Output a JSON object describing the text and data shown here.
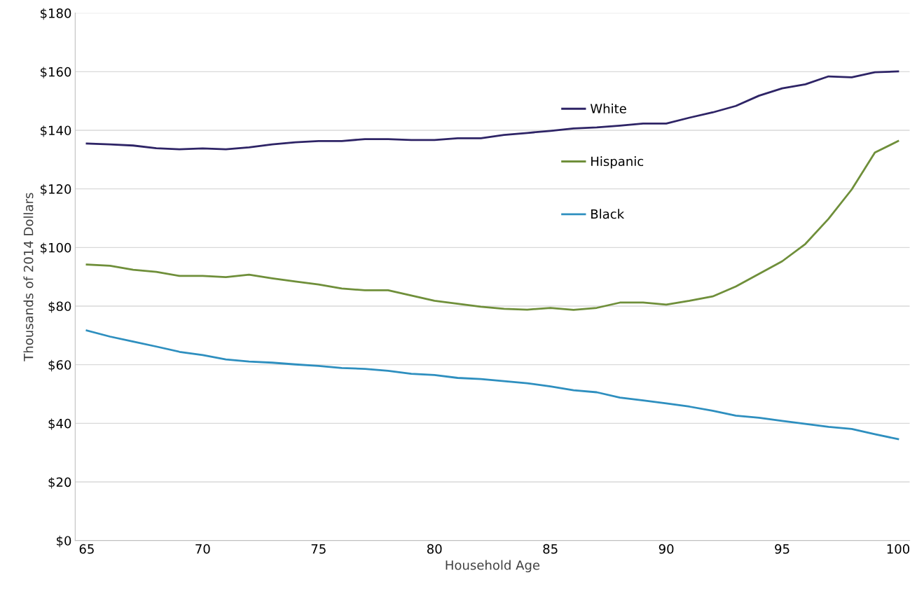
{
  "chart_data": {
    "type": "line",
    "xlabel": "Household Age",
    "ylabel": "Thousands of 2014 Dollars",
    "x": [
      65,
      66,
      67,
      68,
      69,
      70,
      71,
      72,
      73,
      74,
      75,
      76,
      77,
      78,
      79,
      80,
      81,
      82,
      83,
      84,
      85,
      86,
      87,
      88,
      89,
      90,
      91,
      92,
      93,
      94,
      95,
      96,
      97,
      98,
      99,
      100
    ],
    "series": [
      {
        "name": "White",
        "color": "#2e2466",
        "values": [
          135.5,
          135.2,
          134.8,
          133.9,
          133.5,
          133.8,
          133.5,
          134.2,
          135.2,
          135.9,
          136.3,
          136.3,
          137,
          137,
          136.7,
          136.7,
          137.3,
          137.3,
          138.4,
          139.1,
          139.8,
          140.6,
          141,
          141.6,
          142.3,
          142.3,
          144.3,
          146.1,
          148.3,
          151.8,
          154.3,
          155.7,
          158.4,
          158.1,
          159.8,
          160.1
        ]
      },
      {
        "name": "Hispanic",
        "color": "#6f8f3a",
        "values": [
          94.2,
          93.8,
          92.4,
          91.7,
          90.3,
          90.3,
          89.9,
          90.7,
          89.5,
          88.4,
          87.4,
          86,
          85.4,
          85.4,
          83.6,
          81.8,
          80.8,
          79.8,
          79.1,
          78.8,
          79.4,
          78.7,
          79.4,
          81.2,
          81.2,
          80.5,
          81.8,
          83.3,
          86.7,
          91,
          95.3,
          101.2,
          109.8,
          119.8,
          132.4,
          136.3
        ]
      },
      {
        "name": "Black",
        "color": "#2e8fbf",
        "values": [
          71.7,
          69.6,
          67.9,
          66.2,
          64.4,
          63.3,
          61.8,
          61.1,
          60.7,
          60.1,
          59.6,
          58.9,
          58.6,
          57.9,
          56.9,
          56.5,
          55.5,
          55.1,
          54.4,
          53.7,
          52.6,
          51.3,
          50.6,
          48.8,
          47.8,
          46.8,
          45.7,
          44.3,
          42.6,
          41.9,
          40.8,
          39.8,
          38.8,
          38.1,
          36.3,
          34.6
        ]
      }
    ],
    "xlim": [
      64.5,
      100.5
    ],
    "xticks": [
      65,
      70,
      75,
      80,
      85,
      90,
      95,
      100
    ],
    "ylim": [
      0,
      180
    ],
    "yticks": [
      {
        "value": 0,
        "label": "$0"
      },
      {
        "value": 20,
        "label": "$20"
      },
      {
        "value": 40,
        "label": "$40"
      },
      {
        "value": 60,
        "label": "$60"
      },
      {
        "value": 80,
        "label": "$80"
      },
      {
        "value": 100,
        "label": "$100"
      },
      {
        "value": 120,
        "label": "$120"
      },
      {
        "value": 140,
        "label": "$140"
      },
      {
        "value": 160,
        "label": "$160"
      },
      {
        "value": 180,
        "label": "$180"
      }
    ],
    "grid": "y",
    "legend": "center",
    "marker": "none",
    "line_style": "solid"
  }
}
